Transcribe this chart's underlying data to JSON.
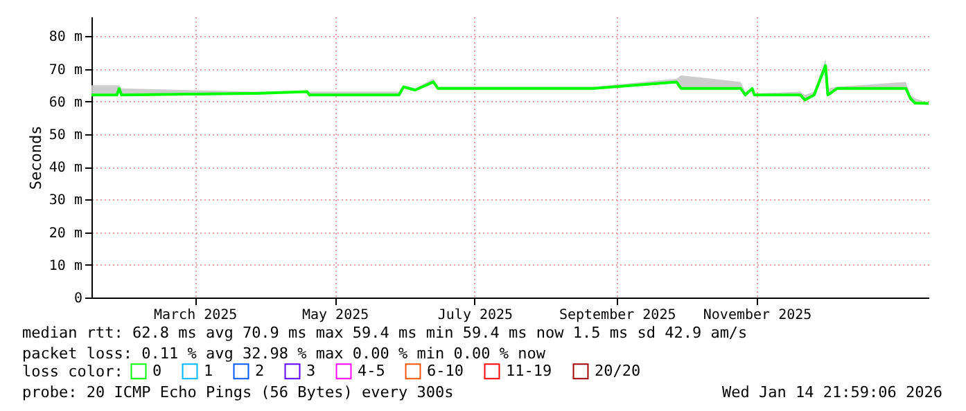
{
  "chart_data": {
    "type": "line",
    "ylabel": "Seconds",
    "x": [
      "2025-01-14T22:00",
      "2025-01-26",
      "2025-01-27",
      "2025-01-28",
      "2025-03-27",
      "2025-04-19",
      "2025-04-20",
      "2025-05-29",
      "2025-05-31",
      "2025-06-05",
      "2025-06-13",
      "2025-06-15",
      "2025-08-22",
      "2025-09-27",
      "2025-09-29",
      "2025-10-25",
      "2025-10-27",
      "2025-10-30",
      "2025-10-31",
      "2025-11-20",
      "2025-11-22",
      "2025-11-26",
      "2025-12-01",
      "2025-12-02",
      "2025-12-06",
      "2026-01-05",
      "2026-01-07",
      "2026-01-09",
      "2026-01-14T22:00"
    ],
    "series": [
      {
        "name": "0",
        "color": "#00ff00",
        "values": [
          62,
          62,
          64,
          62,
          62.5,
          63,
          62,
          62,
          64.5,
          63.5,
          66,
          64,
          64,
          66,
          64,
          64,
          62,
          64,
          62,
          62,
          60.5,
          62,
          71,
          62,
          64,
          64,
          61,
          59.5,
          59.4
        ],
        "lower": [
          62,
          62,
          64,
          62,
          62.5,
          63,
          62,
          62,
          64.5,
          63.5,
          66,
          64,
          64,
          66,
          64,
          64,
          62,
          64,
          62,
          62,
          60.5,
          62,
          71,
          62,
          64,
          64,
          61,
          59.5,
          59.4
        ],
        "upper": [
          65,
          65,
          65,
          64,
          63,
          63,
          63,
          63,
          65,
          64,
          67,
          64.5,
          64.5,
          67,
          68,
          66,
          63,
          64,
          62.5,
          63,
          62,
          63,
          73,
          64,
          64.5,
          66,
          62,
          61,
          59.5
        ]
      },
      {
        "name": "1",
        "color": "#00b8ff",
        "values": [
          null,
          null,
          null,
          null,
          null,
          null,
          null,
          null,
          null,
          null,
          null,
          null,
          null,
          null,
          null,
          null,
          null,
          null,
          null,
          null,
          null,
          null,
          null,
          null,
          null,
          null,
          null,
          null,
          null
        ]
      },
      {
        "name": "2",
        "color": "#0059ff",
        "values": [
          null,
          null,
          null,
          null,
          null,
          null,
          null,
          null,
          null,
          null,
          null,
          null,
          null,
          null,
          null,
          null,
          null,
          null,
          null,
          null,
          null,
          null,
          null,
          null,
          null,
          null,
          null,
          null,
          null
        ]
      },
      {
        "name": "3",
        "color": "#5e00ff",
        "values": [
          null,
          null,
          null,
          null,
          null,
          null,
          null,
          null,
          null,
          null,
          null,
          null,
          null,
          null,
          null,
          null,
          null,
          null,
          null,
          null,
          null,
          null,
          null,
          null,
          null,
          null,
          null,
          null,
          null
        ]
      },
      {
        "name": "4-5",
        "color": "#ff00ff",
        "values": [
          null,
          null,
          null,
          null,
          null,
          null,
          null,
          null,
          null,
          null,
          null,
          null,
          null,
          null,
          null,
          null,
          null,
          null,
          null,
          null,
          null,
          null,
          null,
          null,
          null,
          null,
          null,
          null,
          null
        ]
      },
      {
        "name": "6-10",
        "color": "#ff5500",
        "values": [
          null,
          null,
          null,
          null,
          null,
          null,
          null,
          null,
          null,
          null,
          null,
          null,
          null,
          null,
          null,
          null,
          null,
          null,
          null,
          null,
          null,
          null,
          null,
          null,
          null,
          null,
          null,
          null,
          null
        ]
      },
      {
        "name": "11-19",
        "color": "#ff0000",
        "values": [
          null,
          null,
          null,
          null,
          null,
          null,
          null,
          null,
          null,
          null,
          null,
          null,
          null,
          null,
          null,
          null,
          null,
          null,
          null,
          null,
          null,
          null,
          null,
          null,
          null,
          null,
          null,
          null,
          null
        ]
      },
      {
        "name": "20/20",
        "color": "#a10000",
        "values": [
          null,
          null,
          null,
          null,
          null,
          null,
          null,
          null,
          null,
          null,
          null,
          null,
          null,
          null,
          null,
          null,
          null,
          null,
          null,
          null,
          null,
          null,
          null,
          null,
          null,
          null,
          null,
          null,
          null
        ]
      }
    ],
    "legend_title": "loss color:",
    "legend": "bottom",
    "xlim": [
      "2025-01-14T22:00",
      "2026-01-14T22:00"
    ],
    "xticks": [
      {
        "value": "2025-03-01",
        "label": "March 2025"
      },
      {
        "value": "2025-05-01",
        "label": "May 2025"
      },
      {
        "value": "2025-07-01",
        "label": "July 2025"
      },
      {
        "value": "2025-09-01",
        "label": "September 2025"
      },
      {
        "value": "2025-11-01",
        "label": "November 2025"
      }
    ],
    "ylim": [
      0,
      86
    ],
    "yticks": [
      0,
      {
        "value": 10,
        "label": "10 m"
      },
      {
        "value": 20,
        "label": "20 m"
      },
      {
        "value": 30,
        "label": "30 m"
      },
      {
        "value": 40,
        "label": "40 m"
      },
      {
        "value": 50,
        "label": "50 m"
      },
      {
        "value": 60,
        "label": "60 m"
      },
      {
        "value": 70,
        "label": "70 m"
      },
      {
        "value": 80,
        "label": "80 m"
      }
    ],
    "grid": true,
    "line_style": "solid",
    "marker": "none",
    "annotations": [
      "median rtt:  62.8 ms avg  70.9 ms max  59.4 ms min  59.4 ms now  1.5 ms sd  42.9   am/s",
      "packet loss: 0.11 % avg  32.98 % max  0.00 % min  0.00 % now",
      "probe:       20 ICMP Echo Pings (56 Bytes) every 300s",
      "Wed Jan 14 21:59:06 2026"
    ]
  }
}
